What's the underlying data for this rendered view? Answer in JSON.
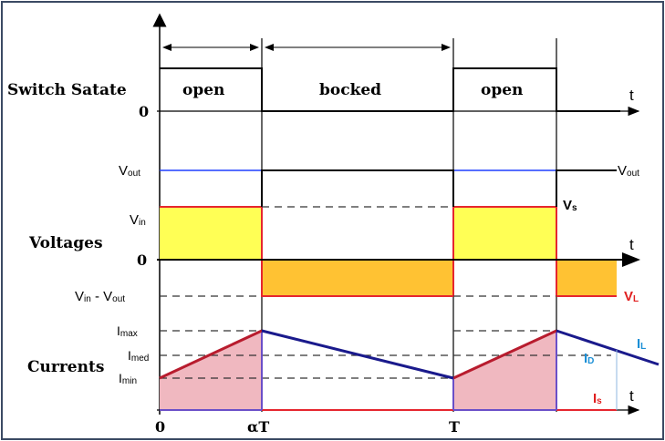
{
  "rows": {
    "switch_state": "Switch Satate",
    "voltages": "Voltages",
    "currents": "Currents"
  },
  "states": {
    "open_1": "open",
    "blocked": "bocked",
    "open_2": "open"
  },
  "time_axis": {
    "t_label": "t",
    "zero": "0",
    "alpha_t": "αT",
    "period": "T"
  },
  "voltage_labels": {
    "vout_main": "V",
    "vout_sub": "out",
    "vin_main": "V",
    "vin_sub": "in",
    "zero": "0",
    "diff_main_1": "V",
    "diff_sub_1": "in",
    "diff_sep": " - V",
    "diff_sub_2": "out",
    "vs_main": "V",
    "vs_sub": "s",
    "vl_main": "V",
    "vl_sub": "L",
    "vout_right_main": "V",
    "vout_right_sub": "out"
  },
  "current_labels": {
    "imax_main": "I",
    "imax_sub": "max",
    "imed_main": "I",
    "imed_sub": "med",
    "imin_main": "I",
    "imin_sub": "min",
    "il_main": "I",
    "il_sub": "L",
    "id_main": "I",
    "id_sub": "D",
    "is_main": "I",
    "is_sub": "s"
  },
  "colors": {
    "frame": "#3b4a64",
    "axis": "#000000",
    "vout_line": "#1f3fff",
    "vin_fill": "#ffff55",
    "vin_stroke": "#e6262e",
    "vl_fill": "#ffc233",
    "il_line": "#1a1a8c",
    "is_fill": "#f0b8c0",
    "is_stroke": "#b81c2e",
    "label_red": "#e02020",
    "label_blue": "#1b8fd6",
    "dash": "#333333"
  }
}
